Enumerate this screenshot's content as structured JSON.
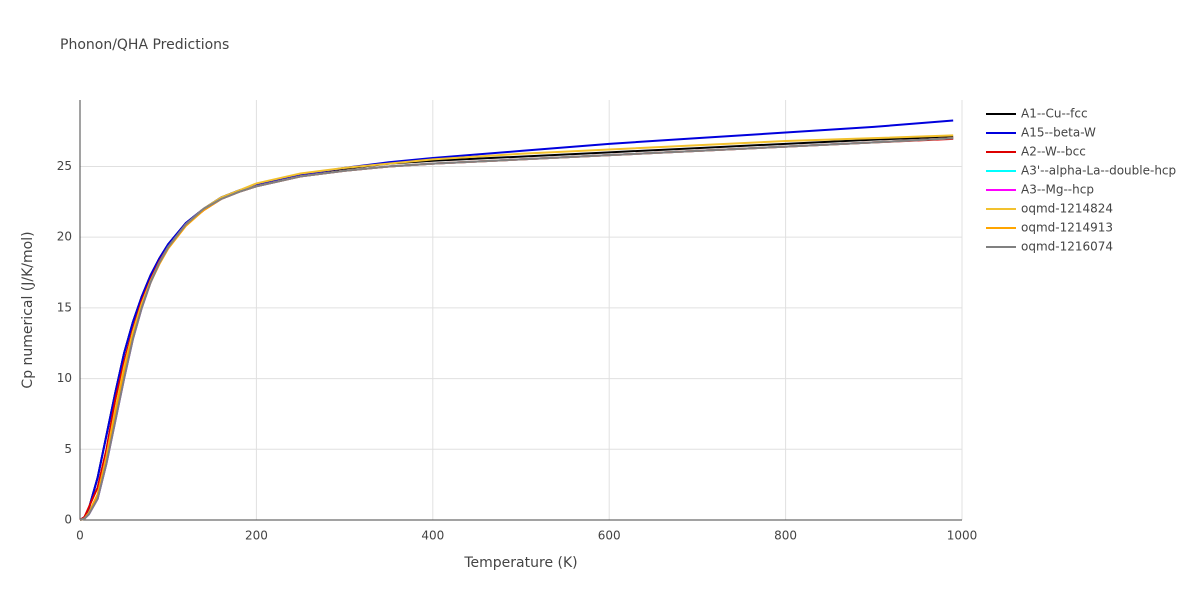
{
  "chart_data": {
    "type": "line",
    "title": "Phonon/QHA Predictions",
    "x_label": "Temperature (K)",
    "y_label": "Cp numerical (J/K/mol)",
    "x": [
      0,
      5,
      10,
      20,
      30,
      40,
      50,
      60,
      70,
      80,
      90,
      100,
      120,
      140,
      160,
      180,
      200,
      250,
      300,
      350,
      400,
      500,
      600,
      700,
      800,
      900,
      990
    ],
    "xlim": [
      0,
      1000
    ],
    "xticks": [
      0,
      200,
      400,
      600,
      800,
      1000
    ],
    "ylim": [
      0,
      29.7
    ],
    "yticks": [
      0,
      5,
      10,
      15,
      20,
      25
    ],
    "grid": true,
    "legend": "right",
    "series": [
      {
        "name": "A1--Cu--fcc",
        "color": "#000000",
        "values": [
          0,
          0.2,
          0.8,
          3,
          6,
          9,
          11.8,
          14,
          15.8,
          17.3,
          18.5,
          19.5,
          21,
          22,
          22.8,
          23.3,
          23.7,
          24.4,
          24.85,
          25.2,
          25.4,
          25.7,
          26.0,
          26.3,
          26.6,
          26.9,
          27.1
        ]
      },
      {
        "name": "A15--beta-W",
        "color": "#0000dd",
        "values": [
          0,
          0.2,
          0.8,
          3,
          6,
          9,
          11.8,
          14,
          15.8,
          17.3,
          18.5,
          19.5,
          21,
          22,
          22.8,
          23.3,
          23.7,
          24.4,
          24.9,
          25.3,
          25.6,
          26.1,
          26.6,
          27.0,
          27.4,
          27.8,
          28.25
        ]
      },
      {
        "name": "A2--W--bcc",
        "color": "#dd0000",
        "values": [
          0,
          0.2,
          0.9,
          2.3,
          5,
          8.5,
          11.2,
          13.5,
          15.5,
          17,
          18.3,
          19.3,
          20.9,
          21.9,
          22.7,
          23.2,
          23.6,
          24.3,
          24.7,
          25.0,
          25.2,
          25.5,
          25.8,
          26.1,
          26.4,
          26.7,
          26.95
        ]
      },
      {
        "name": "A3'--alpha-La--double-hcp",
        "color": "#00ffff",
        "values": [
          0,
          0.1,
          0.4,
          1.5,
          4,
          7,
          10,
          12.8,
          15,
          16.8,
          18.2,
          19.3,
          20.9,
          22,
          22.7,
          23.2,
          23.6,
          24.3,
          24.7,
          25.0,
          25.2,
          25.5,
          25.8,
          26.1,
          26.4,
          26.7,
          27.0
        ]
      },
      {
        "name": "A3--Mg--hcp",
        "color": "#ff00ff",
        "values": [
          0,
          0.1,
          0.4,
          1.5,
          4,
          7,
          10,
          12.8,
          15,
          16.8,
          18.2,
          19.3,
          20.9,
          22,
          22.7,
          23.2,
          23.6,
          24.3,
          24.7,
          25.0,
          25.2,
          25.5,
          25.8,
          26.1,
          26.4,
          26.7,
          27.0
        ]
      },
      {
        "name": "oqmd-1214824",
        "color": "#f2c12e",
        "values": [
          0,
          0.1,
          0.5,
          1.8,
          4.5,
          7.8,
          10.8,
          13.3,
          15.3,
          16.9,
          18.2,
          19.3,
          20.9,
          22.0,
          22.8,
          23.3,
          23.8,
          24.5,
          24.9,
          25.2,
          25.5,
          25.9,
          26.2,
          26.5,
          26.8,
          27.0,
          27.2
        ]
      },
      {
        "name": "oqmd-1214913",
        "color": "#ffa500",
        "values": [
          0,
          0.1,
          0.5,
          1.8,
          4.3,
          7.5,
          10.5,
          13,
          15.1,
          16.8,
          18.1,
          19.2,
          20.8,
          21.9,
          22.7,
          23.2,
          23.6,
          24.3,
          24.7,
          25.0,
          25.2,
          25.5,
          25.8,
          26.1,
          26.4,
          26.7,
          27.0
        ]
      },
      {
        "name": "oqmd-1216074",
        "color": "#808080",
        "values": [
          0,
          0.1,
          0.4,
          1.5,
          4,
          7,
          10,
          12.8,
          15,
          16.8,
          18.2,
          19.3,
          20.9,
          22,
          22.7,
          23.2,
          23.6,
          24.3,
          24.7,
          25.0,
          25.2,
          25.5,
          25.8,
          26.1,
          26.4,
          26.7,
          27.0
        ]
      }
    ]
  }
}
